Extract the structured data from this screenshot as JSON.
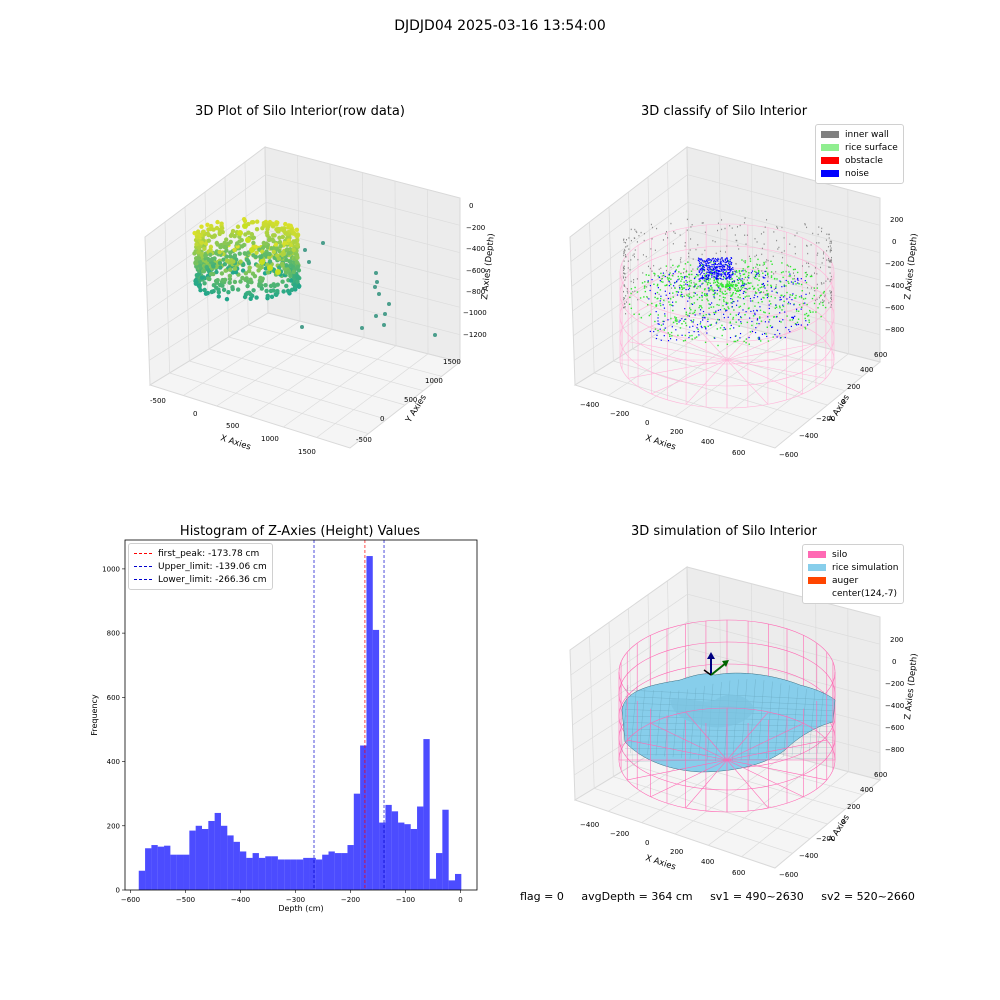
{
  "suptitle": "DJDJD04 2025-03-16 13:54:00",
  "panels": {
    "raw": {
      "title": "3D Plot of Silo Interior(row data)",
      "xlabel": "X Axies",
      "ylabel": "Y Axies",
      "zlabel": "Z Axies (Depth)",
      "xticks": [
        "-500",
        "0",
        "500",
        "1000",
        "1500"
      ],
      "yticks": [
        "-500",
        "0",
        "500",
        "1000",
        "1500"
      ],
      "zticks": [
        "0",
        "−200",
        "−400",
        "−600",
        "−800",
        "−1000",
        "−1200"
      ]
    },
    "classify": {
      "title": "3D classify of Silo Interior",
      "xlabel": "X Axies",
      "ylabel": "Y Axies",
      "zlabel": "Z Axies (Depth)",
      "xticks": [
        "−400",
        "−200",
        "0",
        "200",
        "400",
        "600"
      ],
      "yticks": [
        "−600",
        "−400",
        "−200",
        "0",
        "200",
        "400",
        "600"
      ],
      "zticks": [
        "200",
        "0",
        "−200",
        "−400",
        "−600",
        "−800"
      ],
      "legend": [
        {
          "label": "inner wall",
          "color": "#808080"
        },
        {
          "label": "rice surface",
          "color": "#90ee90"
        },
        {
          "label": "obstacle",
          "color": "#ff0000"
        },
        {
          "label": "noise",
          "color": "#0000ff"
        }
      ]
    },
    "simulation": {
      "title": "3D simulation of Silo Interior",
      "xlabel": "X Axies",
      "ylabel": "Y Axies",
      "zlabel": "Z Axies (Depth)",
      "xticks": [
        "−400",
        "−200",
        "0",
        "200",
        "400",
        "600"
      ],
      "yticks": [
        "−600",
        "−400",
        "−200",
        "0",
        "200",
        "400",
        "600"
      ],
      "zticks": [
        "200",
        "0",
        "−200",
        "−400",
        "−600",
        "−800"
      ],
      "legend": [
        {
          "label": "silo",
          "color": "#ff69b4"
        },
        {
          "label": "rice simulation",
          "color": "#87ceeb"
        },
        {
          "label": "auger",
          "color": "#ff4500"
        },
        {
          "label": "center(124,-7)",
          "color": "#ffffff"
        }
      ]
    }
  },
  "status": {
    "flag": "flag = 0",
    "avg": "avgDepth = 364 cm",
    "sv1": "sv1 = 490~2630",
    "sv2": "sv2 = 520~2660"
  },
  "chart_data": [
    {
      "type": "bar",
      "title": "Histogram of Z-Axies (Height) Values",
      "xlabel": "Depth (cm)",
      "ylabel": "Frequency",
      "xlim": [
        -610,
        30
      ],
      "ylim": [
        0,
        1090
      ],
      "xticks": [
        -600,
        -500,
        -400,
        -300,
        -200,
        -100,
        0
      ],
      "yticks": [
        0,
        200,
        400,
        600,
        800,
        1000
      ],
      "bin_start": -585,
      "bin_width": 11.5,
      "values": [
        60,
        130,
        140,
        135,
        138,
        110,
        110,
        110,
        185,
        200,
        190,
        215,
        240,
        200,
        170,
        150,
        120,
        100,
        115,
        100,
        105,
        105,
        95,
        95,
        95,
        95,
        100,
        100,
        95,
        110,
        120,
        115,
        115,
        140,
        300,
        450,
        1040,
        810,
        210,
        265,
        245,
        210,
        205,
        190,
        260,
        470,
        35,
        115,
        250,
        30,
        50
      ],
      "color": "#0000ff",
      "vlines": [
        {
          "label": "first_peak: -173.78 cm",
          "x": -173.78,
          "color": "#ff0000"
        },
        {
          "label": "Upper_limit: -139.06 cm",
          "x": -139.06,
          "color": "#0000cc"
        },
        {
          "label": "Lower_limit: -266.36 cm",
          "x": -266.36,
          "color": "#0000cc"
        }
      ],
      "legend_position": "top-left"
    }
  ]
}
